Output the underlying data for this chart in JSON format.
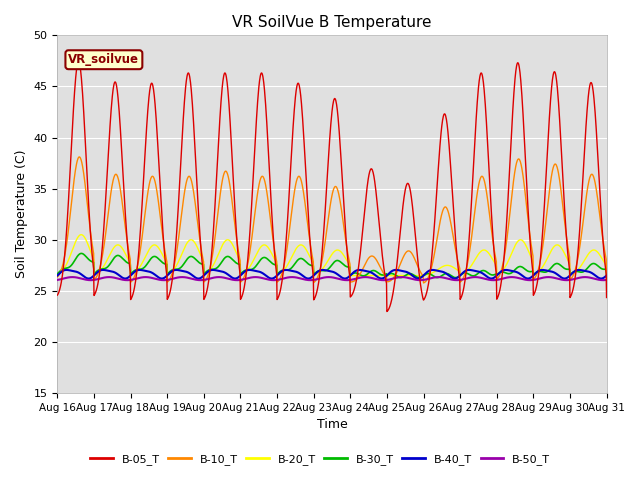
{
  "title": "VR SoilVue B Temperature",
  "xlabel": "Time",
  "ylabel": "Soil Temperature (C)",
  "ylim": [
    15,
    50
  ],
  "yticks": [
    15,
    20,
    25,
    30,
    35,
    40,
    45,
    50
  ],
  "x_labels": [
    "Aug 16",
    "Aug 17",
    "Aug 18",
    "Aug 19",
    "Aug 20",
    "Aug 21",
    "Aug 22",
    "Aug 23",
    "Aug 24",
    "Aug 25",
    "Aug 26",
    "Aug 27",
    "Aug 28",
    "Aug 29",
    "Aug 30",
    "Aug 31"
  ],
  "series_colors": {
    "B-05_T": "#dd0000",
    "B-10_T": "#ff8800",
    "B-20_T": "#ffff00",
    "B-30_T": "#00bb00",
    "B-40_T": "#0000cc",
    "B-50_T": "#9900aa"
  },
  "legend_label": "VR_soilvue",
  "plot_bg": "#e0e0e0",
  "title_fontsize": 11,
  "axis_fontsize": 9,
  "tick_fontsize": 7.5
}
